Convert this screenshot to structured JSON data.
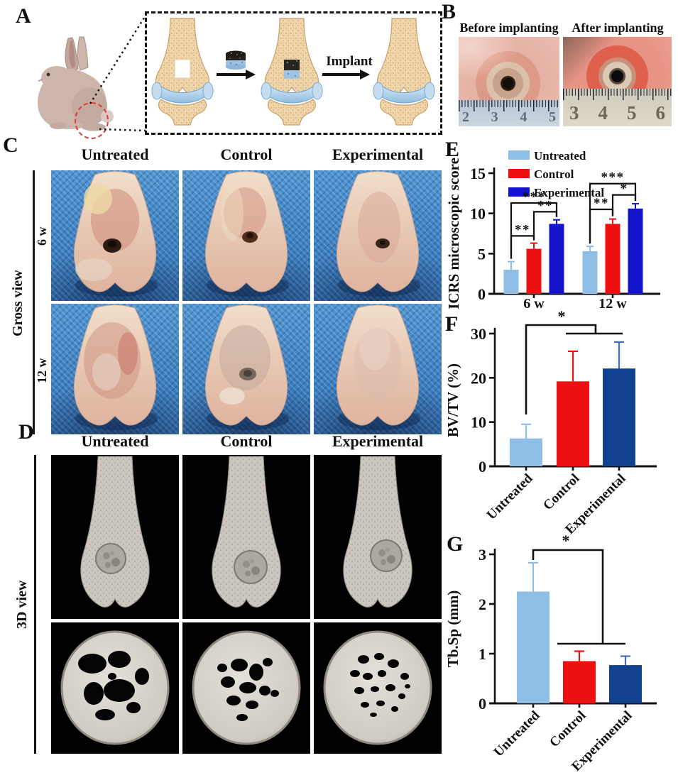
{
  "figure": {
    "panel_labels": {
      "A": "A",
      "B": "B",
      "C": "C",
      "D": "D",
      "E": "E",
      "F": "F",
      "G": "G"
    }
  },
  "panel_a": {
    "implant_label": "Implant"
  },
  "panel_b": {
    "titles": [
      "Before implanting",
      "After implanting"
    ],
    "ruler_left_numbers": [
      "2",
      "3",
      "4",
      "5"
    ],
    "ruler_right_numbers": [
      "3",
      "4",
      "5",
      "6"
    ]
  },
  "panel_c": {
    "columns": [
      "Untreated",
      "Control",
      "Experimental"
    ],
    "row_group_label": "Gross view",
    "row_labels": [
      "6 w",
      "12 w"
    ]
  },
  "panel_d": {
    "columns": [
      "Untreated",
      "Control",
      "Experimental"
    ],
    "row_group_label": "3D view"
  },
  "colors": {
    "untreated": "#8FBEE6",
    "control": "#EE1010",
    "experimental_bright": "#1414CC",
    "experimental_dark": "#11418F"
  },
  "chart_data": [
    {
      "id": "E",
      "type": "bar",
      "ylabel": "ICRS microscopic score",
      "ylim": [
        0,
        15
      ],
      "yticks": [
        0,
        5,
        10,
        15
      ],
      "categories": [
        "6 w",
        "12 w"
      ],
      "series": [
        {
          "name": "Untreated",
          "color": "#8FBEE6",
          "values": [
            3.0,
            5.3
          ],
          "errors": [
            1.0,
            0.6
          ]
        },
        {
          "name": "Control",
          "color": "#EE1010",
          "values": [
            5.6,
            8.7
          ],
          "errors": [
            0.7,
            0.6
          ]
        },
        {
          "name": "Experimental",
          "color": "#1414CC",
          "values": [
            8.7,
            10.6
          ],
          "errors": [
            0.5,
            0.6
          ]
        }
      ],
      "legend_position": "top-left-inside",
      "significance": [
        {
          "category": 0,
          "from": 0,
          "to": 1,
          "label": "**",
          "y": 7.2
        },
        {
          "category": 0,
          "from": 1,
          "to": 2,
          "label": "**",
          "y": 10.2
        },
        {
          "category": 0,
          "from": 0,
          "to": 2,
          "label": "***",
          "y": 11.3
        },
        {
          "category": 1,
          "from": 0,
          "to": 1,
          "label": "**",
          "y": 10.5
        },
        {
          "category": 1,
          "from": 1,
          "to": 2,
          "label": "*",
          "y": 12.3
        },
        {
          "category": 1,
          "from": 0,
          "to": 2,
          "label": "***",
          "y": 13.7
        }
      ]
    },
    {
      "id": "F",
      "type": "bar",
      "ylabel": "BV/TV (%)",
      "ylim": [
        0,
        30
      ],
      "yticks": [
        0,
        10,
        20,
        30
      ],
      "categories": [
        "Untreated",
        "Control",
        "Experimental"
      ],
      "values": [
        6.3,
        19.2,
        22.1
      ],
      "errors": [
        3.2,
        6.8,
        6.0
      ],
      "colors": [
        "#8FBEE6",
        "#EE1010",
        "#11418F"
      ],
      "significance": [
        {
          "label": "*",
          "from": 0,
          "to_group": [
            1,
            2
          ]
        }
      ]
    },
    {
      "id": "G",
      "type": "bar",
      "ylabel": "Tb.Sp (mm)",
      "ylim": [
        0,
        3
      ],
      "yticks": [
        0,
        1,
        2,
        3
      ],
      "categories": [
        "Untreated",
        "Control",
        "Experimental"
      ],
      "values": [
        2.25,
        0.85,
        0.77
      ],
      "errors": [
        0.58,
        0.2,
        0.18
      ],
      "colors": [
        "#8FBEE6",
        "#EE1010",
        "#11418F"
      ],
      "significance": [
        {
          "label": "*",
          "from": 0,
          "to_group": [
            1,
            2
          ]
        }
      ]
    }
  ]
}
